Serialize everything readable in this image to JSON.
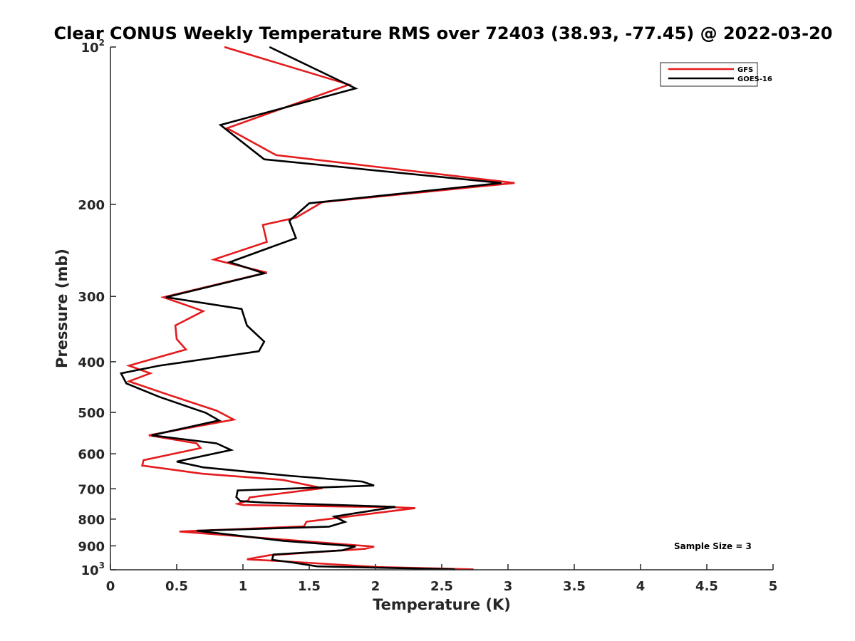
{
  "chart_data": {
    "type": "line",
    "title": "Clear CONUS Weekly Temperature RMS over 72403 (38.93, -77.45) @ 2022-03-20",
    "xlabel": "Temperature (K)",
    "ylabel": "Pressure (mb)",
    "xlim": [
      0,
      5
    ],
    "ylim": [
      100,
      1000
    ],
    "y_scale": "log",
    "y_reversed": true,
    "grid": false,
    "legend_position": "top-right",
    "x_ticks": [
      "0",
      "0.5",
      "1",
      "1.5",
      "2",
      "2.5",
      "3",
      "3.5",
      "4",
      "4.5",
      "5"
    ],
    "x_tick_values": [
      0,
      0.5,
      1,
      1.5,
      2,
      2.5,
      3,
      3.5,
      4,
      4.5,
      5
    ],
    "y_ticks": [
      {
        "value": 100,
        "base": "10",
        "exp": "2"
      },
      {
        "value": 200,
        "label": "200"
      },
      {
        "value": 300,
        "label": "300"
      },
      {
        "value": 400,
        "label": "400"
      },
      {
        "value": 500,
        "label": "500"
      },
      {
        "value": 600,
        "label": "600"
      },
      {
        "value": 700,
        "label": "700"
      },
      {
        "value": 800,
        "label": "800"
      },
      {
        "value": 900,
        "label": "900"
      },
      {
        "value": 1000,
        "base": "10",
        "exp": "3"
      }
    ],
    "annotation": "Sample Size = 3",
    "series": [
      {
        "name": "GFS",
        "color": "#e41a1c",
        "points": [
          [
            0.86,
            100
          ],
          [
            1.8,
            118
          ],
          [
            0.88,
            143
          ],
          [
            1.25,
            161
          ],
          [
            3.05,
            182
          ],
          [
            1.6,
            198
          ],
          [
            1.4,
            212
          ],
          [
            1.15,
            219
          ],
          [
            1.18,
            236
          ],
          [
            0.78,
            255
          ],
          [
            1.18,
            270
          ],
          [
            0.4,
            301
          ],
          [
            0.7,
            320
          ],
          [
            0.49,
            341
          ],
          [
            0.5,
            362
          ],
          [
            0.57,
            379
          ],
          [
            0.14,
            407
          ],
          [
            0.3,
            421
          ],
          [
            0.14,
            436
          ],
          [
            0.43,
            462
          ],
          [
            0.8,
            496
          ],
          [
            0.93,
            516
          ],
          [
            0.29,
            553
          ],
          [
            0.65,
            573
          ],
          [
            0.68,
            585
          ],
          [
            0.25,
            617
          ],
          [
            0.24,
            632
          ],
          [
            0.69,
            655
          ],
          [
            1.3,
            673
          ],
          [
            1.6,
            698
          ],
          [
            1.05,
            727
          ],
          [
            1.04,
            737
          ],
          [
            0.96,
            748
          ],
          [
            1.0,
            752
          ],
          [
            2.12,
            759
          ],
          [
            2.3,
            762
          ],
          [
            1.62,
            801
          ],
          [
            1.48,
            809
          ],
          [
            1.46,
            826
          ],
          [
            0.52,
            845
          ],
          [
            1.99,
            903
          ],
          [
            1.92,
            912
          ],
          [
            1.2,
            938
          ],
          [
            1.03,
            955
          ],
          [
            1.3,
            963
          ],
          [
            2.02,
            988
          ],
          [
            2.74,
            998
          ]
        ]
      },
      {
        "name": "GOES-16",
        "color": "#000000",
        "points": [
          [
            1.2,
            100
          ],
          [
            1.85,
            120
          ],
          [
            0.83,
            141
          ],
          [
            1.16,
            164
          ],
          [
            2.95,
            182
          ],
          [
            1.5,
            199
          ],
          [
            1.35,
            215
          ],
          [
            1.4,
            232
          ],
          [
            0.9,
            258
          ],
          [
            1.16,
            271
          ],
          [
            0.42,
            301
          ],
          [
            0.99,
            317
          ],
          [
            1.03,
            341
          ],
          [
            1.16,
            366
          ],
          [
            1.12,
            382
          ],
          [
            0.37,
            407
          ],
          [
            0.08,
            421
          ],
          [
            0.12,
            440
          ],
          [
            0.37,
            467
          ],
          [
            0.72,
            501
          ],
          [
            0.82,
            518
          ],
          [
            0.31,
            553
          ],
          [
            0.8,
            573
          ],
          [
            0.91,
            590
          ],
          [
            0.5,
            621
          ],
          [
            0.7,
            637
          ],
          [
            1.35,
            661
          ],
          [
            1.9,
            678
          ],
          [
            1.99,
            690
          ],
          [
            0.96,
            705
          ],
          [
            0.95,
            726
          ],
          [
            0.98,
            739
          ],
          [
            1.16,
            744
          ],
          [
            2.15,
            758
          ],
          [
            1.69,
            791
          ],
          [
            1.77,
            810
          ],
          [
            1.65,
            827
          ],
          [
            0.65,
            842
          ],
          [
            1.3,
            880
          ],
          [
            1.85,
            902
          ],
          [
            1.75,
            918
          ],
          [
            1.23,
            935
          ],
          [
            1.22,
            957
          ],
          [
            1.37,
            968
          ],
          [
            1.56,
            985
          ],
          [
            2.6,
            998
          ]
        ]
      }
    ]
  }
}
